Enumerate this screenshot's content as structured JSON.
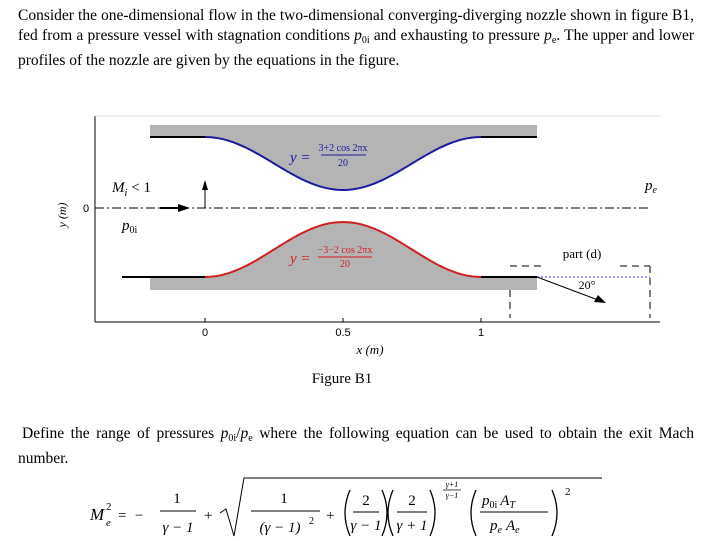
{
  "intro": {
    "parts": [
      "Consider the one-dimensional flow in the two-dimensional converging-diverging nozzle shown in figure B1, fed from a pressure vessel with stagnation conditions ",
      "p",
      "0i",
      " and exhausting to pressure ",
      "p",
      "e",
      ". The upper and lower profiles of the nozzle are given by the equations in the figure."
    ]
  },
  "figure": {
    "upper_eq": {
      "lhs": "y =",
      "num": "3+2 cos 2πx",
      "den": "20"
    },
    "lower_eq": {
      "lhs": "y =",
      "num": "−3−2 cos 2πx",
      "den": "20"
    },
    "inlet_mach": "M",
    "inlet_mach_sub": "i",
    "inlet_mach_cond": "< 1",
    "p0i": "p",
    "p0i_sub": "0i",
    "pe": "p",
    "pe_sub": "e",
    "y_label": "y (m)",
    "y_tick": 0,
    "x_ticks": [
      0,
      0.5,
      1
    ],
    "x_label": "x (m)",
    "part_label": "part (d)",
    "angle": "20°",
    "caption": "Figure B1"
  },
  "question": {
    "parts": [
      "Define the range of pressures ",
      "p",
      "0i",
      "/",
      "p",
      "e",
      " where the following equation can be used to obtain the exit Mach number."
    ]
  },
  "equation": {
    "lhs": "M",
    "lhs_sup": "2",
    "lhs_sub": "e",
    "eq": "=",
    "minus": "−",
    "f1_num": "1",
    "f1_den": "γ − 1",
    "plus1": "+",
    "f2_num": "1",
    "f2_den": "(γ − 1)",
    "f2_den_sup": "2",
    "plus2": "+",
    "f3_num": "2",
    "f3_den": "γ − 1",
    "f4_num": "2",
    "f4_den": "γ + 1",
    "exp_num": "γ+1",
    "exp_den": "γ−1",
    "f5_num_p": "p",
    "f5_num_psub": "0i",
    "f5_num_A": "A",
    "f5_num_Asub": "T",
    "f5_den_p": "p",
    "f5_den_psub": "e",
    "f5_den_A": "A",
    "f5_den_Asub": "e",
    "outer_exp": "2"
  }
}
